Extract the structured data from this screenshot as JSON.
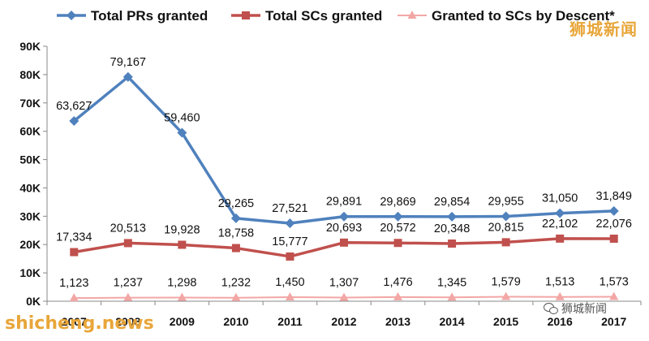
{
  "chart_data": {
    "type": "line",
    "title": "",
    "xlabel": "",
    "ylabel": "",
    "categories": [
      "2007",
      "2008",
      "2009",
      "2010",
      "2011",
      "2012",
      "2013",
      "2014",
      "2015",
      "2016",
      "2017"
    ],
    "ylim": [
      0,
      90000
    ],
    "yticks": [
      0,
      10000,
      20000,
      30000,
      40000,
      50000,
      60000,
      70000,
      80000,
      90000
    ],
    "ytick_labels": [
      "0K",
      "10K",
      "20K",
      "30K",
      "40K",
      "50K",
      "60K",
      "70K",
      "80K",
      "90K"
    ],
    "grid": false,
    "legend_position": "top",
    "series": [
      {
        "name": "Total PRs granted",
        "color": "#4f81bd",
        "marker": "diamond",
        "values": [
          63627,
          79167,
          59460,
          29265,
          27521,
          29891,
          29869,
          29854,
          29955,
          31050,
          31849
        ],
        "labels": [
          "63,627",
          "79,167",
          "59,460",
          "29,265",
          "27,521",
          "29,891",
          "29,869",
          "29,854",
          "29,955",
          "31,050",
          "31,849"
        ]
      },
      {
        "name": "Total SCs granted",
        "color": "#c0504d",
        "marker": "square",
        "values": [
          17334,
          20513,
          19928,
          18758,
          15777,
          20693,
          20572,
          20348,
          20815,
          22102,
          22076
        ],
        "labels": [
          "17,334",
          "20,513",
          "19,928",
          "18,758",
          "15,777",
          "20,693",
          "20,572",
          "20,348",
          "20,815",
          "22,102",
          "22,076"
        ]
      },
      {
        "name": "Granted to SCs by Descent*",
        "color": "#f2a7a5",
        "marker": "triangle",
        "values": [
          1123,
          1237,
          1298,
          1232,
          1450,
          1307,
          1476,
          1345,
          1579,
          1513,
          1573
        ],
        "labels": [
          "1,123",
          "1,237",
          "1,298",
          "1,232",
          "1,450",
          "1,307",
          "1,476",
          "1,345",
          "1,579",
          "1,513",
          "1,573"
        ]
      }
    ]
  },
  "watermarks": {
    "top_right": "狮城新闻",
    "bottom_left": "shicheng.news",
    "social": "狮城新闻",
    "social_icon": "wechat-icon"
  }
}
